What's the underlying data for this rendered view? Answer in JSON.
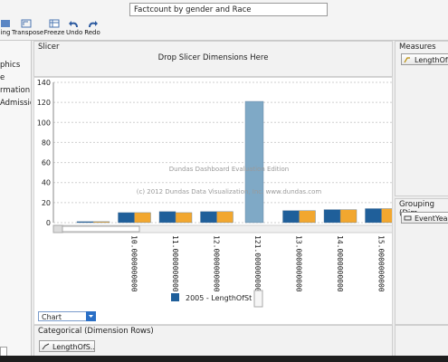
{
  "toolbar": {
    "title_value": "Factcount by gender and Race",
    "buttons": [
      {
        "label": "ing"
      },
      {
        "label": "Transpose"
      },
      {
        "label": "Freeze"
      },
      {
        "label": "Undo"
      },
      {
        "label": "Redo"
      }
    ]
  },
  "left_panel": {
    "items": [
      "phics",
      "e",
      "rmation",
      "Admissio"
    ]
  },
  "slicer": {
    "title": "Slicer",
    "placeholder": "Drop Slicer Dimensions Here"
  },
  "measures": {
    "title": "Measures",
    "chip": "LengthOfS"
  },
  "grouping": {
    "title": "Grouping (Dim",
    "chip": "EventYear"
  },
  "categorical": {
    "title": "Categorical (Dimension Rows)",
    "chip": "LengthOfS..."
  },
  "chart_type": {
    "selected": "Chart"
  },
  "watermark": {
    "line1": "Dundas Dashboard Evaluation Edition",
    "line2": "(c) 2012 Dundas Data Visualization, Inc. www.dundas.com"
  },
  "colors": {
    "series_blue": "#1f5f9a",
    "series_orange": "#f2a72f",
    "tall_bar": "#7fa9c6"
  },
  "chart_data": {
    "type": "bar",
    "categories": [
      "",
      "10.0000000000",
      "11.0000000000",
      "12.0000000000",
      "121.0000000000",
      "13.0000000000",
      "14.0000000000",
      "15.0000000000"
    ],
    "series": [
      {
        "name": "2005 - LengthOfSt",
        "values": [
          1,
          10,
          11,
          11,
          121,
          12,
          13,
          14
        ]
      },
      {
        "name": "",
        "values": [
          1,
          10,
          10,
          11,
          null,
          12,
          13,
          14
        ]
      }
    ],
    "y_ticks": [
      0,
      20,
      40,
      60,
      80,
      100,
      120,
      140
    ],
    "ylim": [
      0,
      140
    ],
    "grid": true,
    "legend": "bottom"
  }
}
